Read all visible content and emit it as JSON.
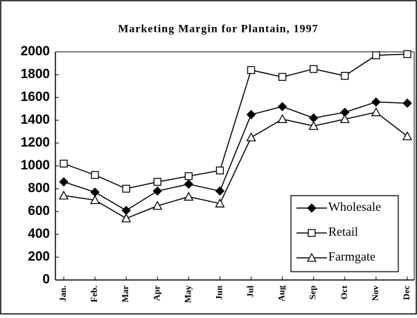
{
  "chart_data": {
    "type": "line",
    "title": "Marketing Margin for Plantain, 1997",
    "categories": [
      "Jan.",
      "Feb.",
      "Mar",
      "Apr",
      "May",
      "Jun",
      "Jul",
      "Aug",
      "Sep",
      "Oct",
      "Nov",
      "Dec"
    ],
    "series": [
      {
        "name": "Wholesale",
        "color": "#000000",
        "marker": "diamond",
        "values": [
          860,
          770,
          610,
          780,
          840,
          780,
          1450,
          1520,
          1420,
          1470,
          1560,
          1550
        ]
      },
      {
        "name": "Retail",
        "color": "#000000",
        "marker": "square",
        "values": [
          1020,
          920,
          800,
          860,
          910,
          960,
          1840,
          1780,
          1850,
          1790,
          1970,
          1980
        ]
      },
      {
        "name": "Farmgate",
        "color": "#000000",
        "marker": "triangle",
        "values": [
          740,
          700,
          540,
          650,
          730,
          670,
          1250,
          1410,
          1350,
          1410,
          1470,
          1260
        ]
      }
    ],
    "ylim": [
      0,
      2000
    ],
    "yticks": [
      0,
      200,
      400,
      600,
      800,
      1000,
      1200,
      1400,
      1600,
      1800,
      2000
    ],
    "grid": false,
    "legend": "lower right"
  }
}
